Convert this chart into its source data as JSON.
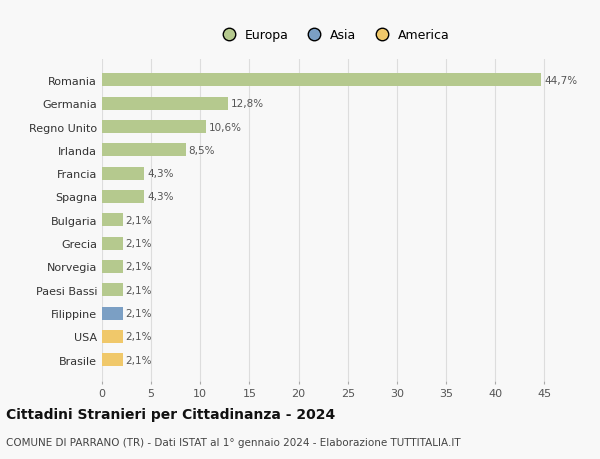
{
  "countries": [
    "Romania",
    "Germania",
    "Regno Unito",
    "Irlanda",
    "Francia",
    "Spagna",
    "Bulgaria",
    "Grecia",
    "Norvegia",
    "Paesi Bassi",
    "Filippine",
    "USA",
    "Brasile"
  ],
  "values": [
    44.7,
    12.8,
    10.6,
    8.5,
    4.3,
    4.3,
    2.1,
    2.1,
    2.1,
    2.1,
    2.1,
    2.1,
    2.1
  ],
  "labels": [
    "44,7%",
    "12,8%",
    "10,6%",
    "8,5%",
    "4,3%",
    "4,3%",
    "2,1%",
    "2,1%",
    "2,1%",
    "2,1%",
    "2,1%",
    "2,1%",
    "2,1%"
  ],
  "colors": [
    "#b5c98e",
    "#b5c98e",
    "#b5c98e",
    "#b5c98e",
    "#b5c98e",
    "#b5c98e",
    "#b5c98e",
    "#b5c98e",
    "#b5c98e",
    "#b5c98e",
    "#7b9fc4",
    "#f0c86a",
    "#f0c86a"
  ],
  "legend_labels": [
    "Europa",
    "Asia",
    "America"
  ],
  "legend_colors": [
    "#b5c98e",
    "#7b9fc4",
    "#f0c86a"
  ],
  "title": "Cittadini Stranieri per Cittadinanza - 2024",
  "subtitle": "COMUNE DI PARRANO (TR) - Dati ISTAT al 1° gennaio 2024 - Elaborazione TUTTITALIA.IT",
  "xlim": [
    0,
    47
  ],
  "xticks": [
    0,
    5,
    10,
    15,
    20,
    25,
    30,
    35,
    40,
    45
  ],
  "background_color": "#f8f8f8",
  "grid_color": "#dddddd",
  "bar_height": 0.55
}
